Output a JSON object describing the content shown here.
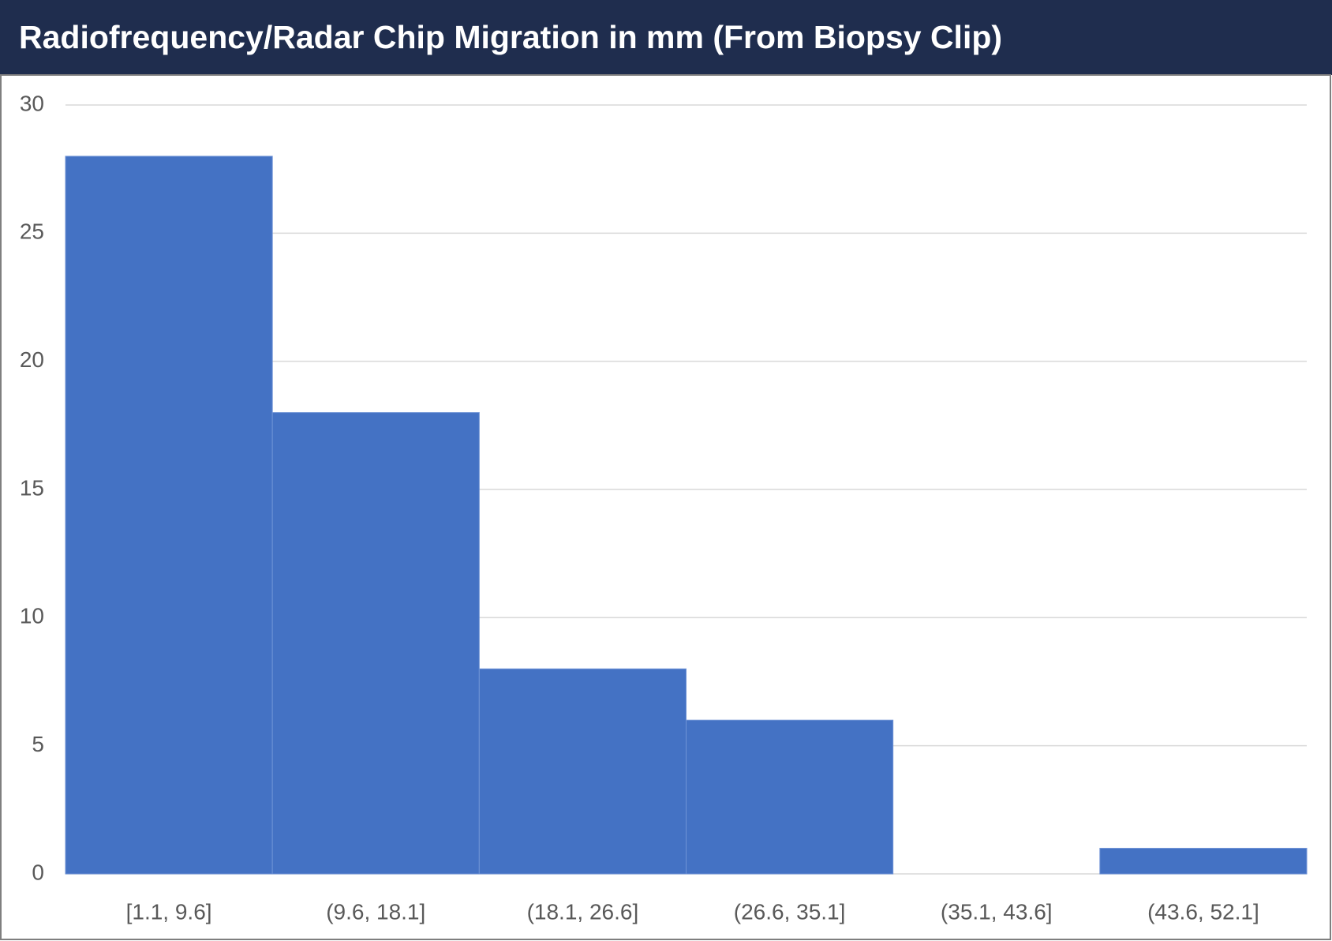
{
  "chart_data": {
    "type": "bar",
    "title": "Radiofrequency/Radar Chip Migration in mm (From Biopsy Clip)",
    "categories": [
      "[1.1, 9.6]",
      "(9.6, 18.1]",
      "(18.1, 26.6]",
      "(26.6, 35.1]",
      "(35.1, 43.6]",
      "(43.6, 52.1]"
    ],
    "values": [
      28,
      18,
      8,
      6,
      0,
      1
    ],
    "color": "#4472c4",
    "ylim": [
      0,
      30
    ],
    "yticks": [
      0,
      5,
      10,
      15,
      20,
      25,
      30
    ],
    "grid": true
  }
}
